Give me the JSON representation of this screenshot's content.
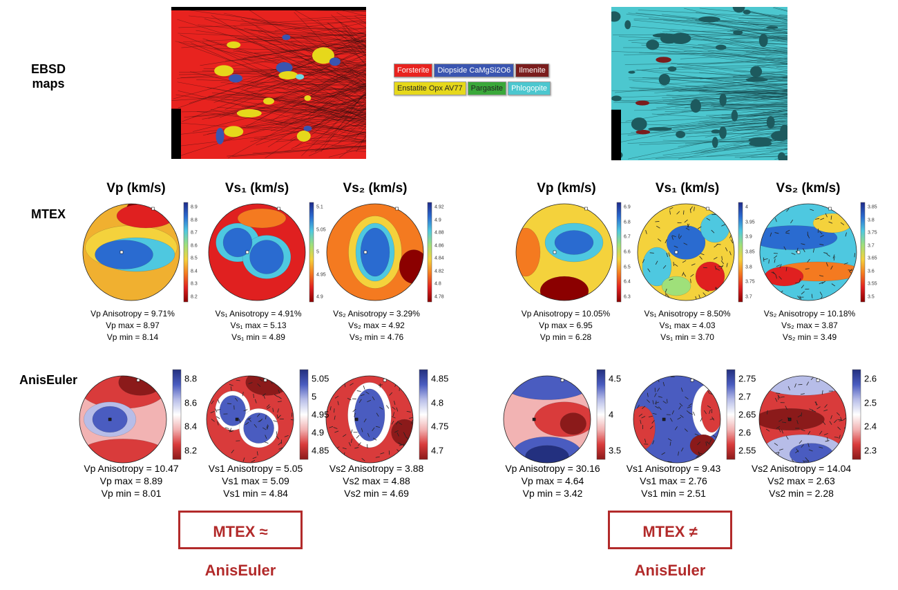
{
  "row_labels": [
    "EBSD maps",
    "MTEX",
    "AnisEuler"
  ],
  "legend": [
    [
      "Forsterite",
      "Diopside  CaMgSi2O6",
      "Ilmenite"
    ],
    [
      "Enstatite  Opx AV77",
      "Pargasite",
      "Phlogopite"
    ]
  ],
  "headers": [
    "Vp (km/s)",
    "Vs₁ (km/s)",
    "Vs₂ (km/s)",
    "Vp (km/s)",
    "Vs₁ (km/s)",
    "Vs₂ (km/s)"
  ],
  "mtex": [
    {
      "colorbar": [
        "8.9",
        "8.8",
        "8.7",
        "8.6",
        "8.5",
        "8.4",
        "8.3",
        "8.2"
      ],
      "stats": [
        "Vp Anisotropy = 9.71%",
        "Vp max = 8.97",
        "Vp min = 8.14"
      ]
    },
    {
      "colorbar": [
        "5.1",
        "5.05",
        "5",
        "4.95",
        "4.9"
      ],
      "stats": [
        "Vs₁ Anisotropy = 4.91%",
        "Vs₁ max = 5.13",
        "Vs₁ min = 4.89"
      ]
    },
    {
      "colorbar": [
        "4.92",
        "4.9",
        "4.88",
        "4.86",
        "4.84",
        "4.82",
        "4.8",
        "4.78"
      ],
      "stats": [
        "Vs₂ Anisotropy = 3.29%",
        "Vs₂ max = 4.92",
        "Vs₂ min = 4.76"
      ]
    },
    {
      "colorbar": [
        "6.9",
        "6.8",
        "6.7",
        "6.6",
        "6.5",
        "6.4",
        "6.3"
      ],
      "stats": [
        "Vp Anisotropy = 10.05%",
        "Vp max = 6.95",
        "Vp min = 6.28"
      ]
    },
    {
      "colorbar": [
        "4",
        "3.95",
        "3.9",
        "3.85",
        "3.8",
        "3.75",
        "3.7"
      ],
      "stats": [
        "Vs₁ Anisotropy = 8.50%",
        "Vs₁ max = 4.03",
        "Vs₁ min = 3.70"
      ]
    },
    {
      "colorbar": [
        "3.85",
        "3.8",
        "3.75",
        "3.7",
        "3.65",
        "3.6",
        "3.55",
        "3.5"
      ],
      "stats": [
        "Vs₂ Anisotropy = 10.18%",
        "Vs₂ max = 3.87",
        "Vs₂ min = 3.49"
      ]
    }
  ],
  "aniseuler": [
    {
      "colorbar": [
        "8.8",
        "8.6",
        "8.4",
        "8.2"
      ],
      "stats": [
        "Vp Anisotropy = 10.47",
        "Vp max = 8.89",
        "Vp min = 8.01"
      ]
    },
    {
      "colorbar": [
        "5.05",
        "5",
        "4.95",
        "4.9",
        "4.85"
      ],
      "stats": [
        "Vs1 Anisotropy = 5.05",
        "Vs1 max = 5.09",
        "Vs1 min = 4.84"
      ]
    },
    {
      "colorbar": [
        "4.85",
        "4.8",
        "4.75",
        "4.7"
      ],
      "stats": [
        "Vs2 Anisotropy = 3.88",
        "Vs2 max = 4.88",
        "Vs2 min = 4.69"
      ]
    },
    {
      "colorbar": [
        "4.5",
        "4",
        "3.5"
      ],
      "stats": [
        "Vp Anisotropy = 30.16",
        "Vp max = 4.64",
        "Vp min = 3.42"
      ]
    },
    {
      "colorbar": [
        "2.75",
        "2.7",
        "2.65",
        "2.6",
        "2.55"
      ],
      "stats": [
        "Vs1 Anisotropy = 9.43",
        "Vs1 max = 2.76",
        "Vs1 min = 2.51"
      ]
    },
    {
      "colorbar": [
        "2.6",
        "2.5",
        "2.4",
        "2.3"
      ],
      "stats": [
        "Vs2 Anisotropy = 14.04",
        "Vs2 max = 2.63",
        "Vs2 min = 2.28"
      ]
    }
  ],
  "conclusions": [
    "MTEX ≈ AnisEuler",
    "MTEX ≠ AnisEuler"
  ]
}
